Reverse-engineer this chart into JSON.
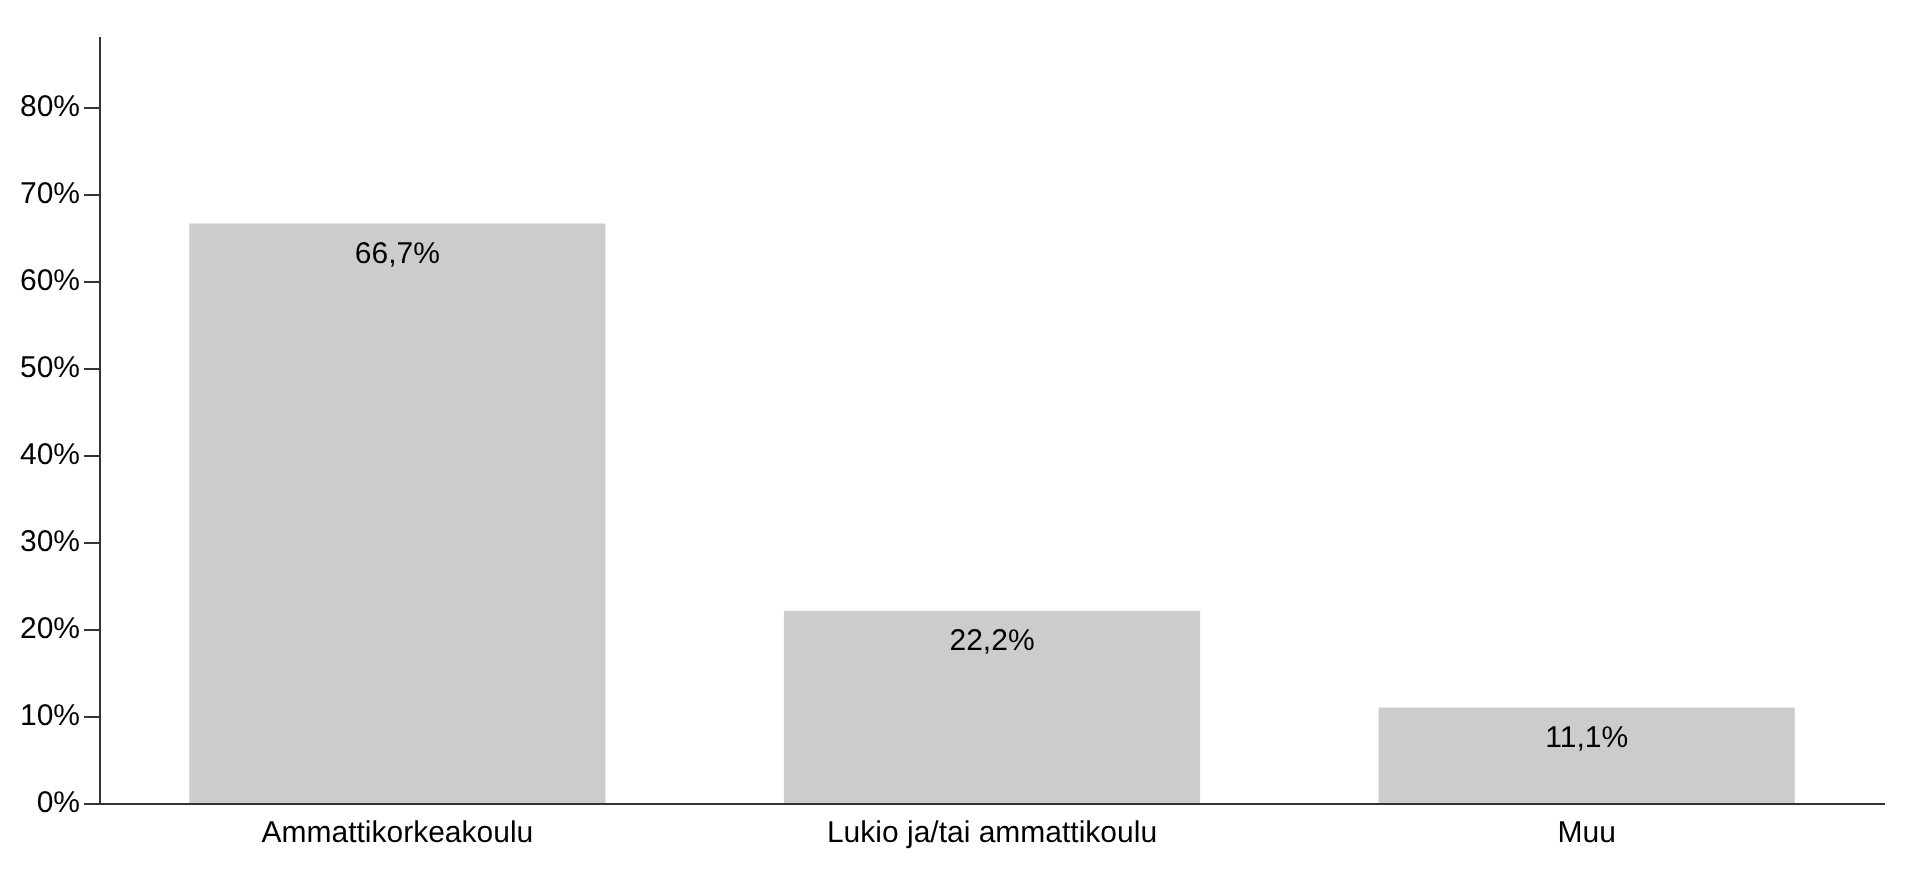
{
  "chart_data": {
    "type": "bar",
    "categories": [
      "Ammattikorkeakoulu",
      "Lukio ja/tai ammattikoulu",
      "Muu"
    ],
    "values": [
      66.7,
      22.2,
      11.1
    ],
    "color": "#cccccc",
    "value_labels": [
      "66,7%",
      "22,2%",
      "11,1%"
    ],
    "ylim": [
      0,
      88
    ],
    "yticks": [
      {
        "value": 0,
        "label": "0%"
      },
      {
        "value": 10,
        "label": "10%"
      },
      {
        "value": 20,
        "label": "20%"
      },
      {
        "value": 30,
        "label": "30%"
      },
      {
        "value": 40,
        "label": "40%"
      },
      {
        "value": 50,
        "label": "50%"
      },
      {
        "value": 60,
        "label": "60%"
      },
      {
        "value": 70,
        "label": "70%"
      },
      {
        "value": 80,
        "label": "80%"
      }
    ],
    "grid": false,
    "legend": false
  }
}
